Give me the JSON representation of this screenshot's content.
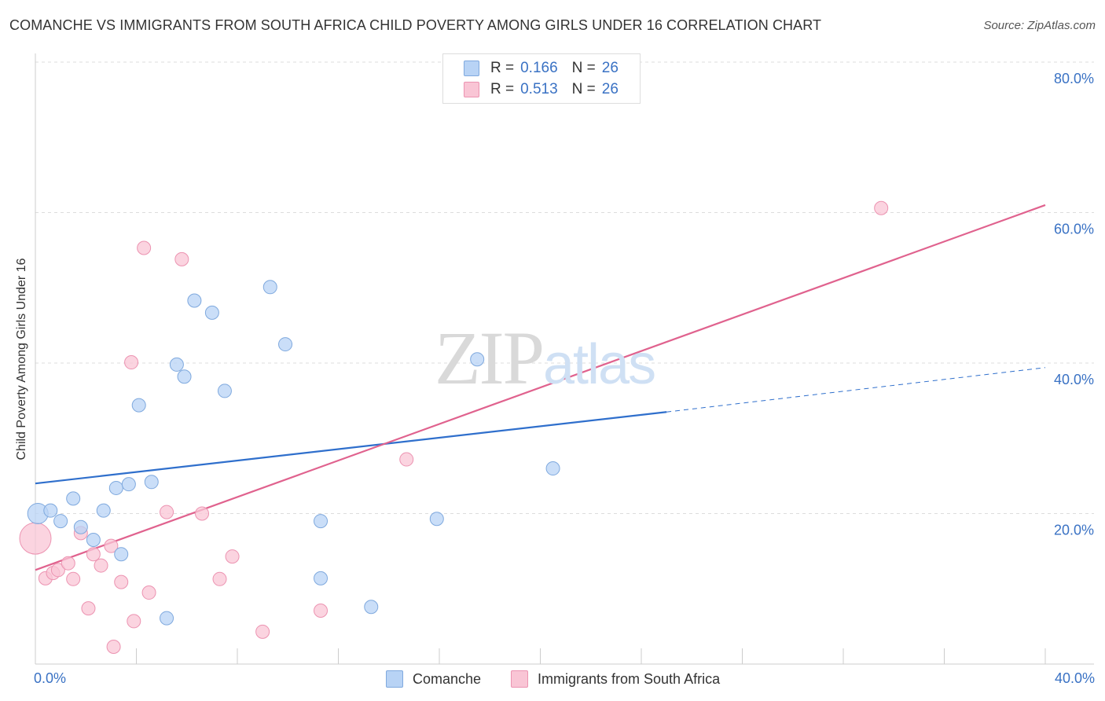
{
  "title": "COMANCHE VS IMMIGRANTS FROM SOUTH AFRICA CHILD POVERTY AMONG GIRLS UNDER 16 CORRELATION CHART",
  "source": "Source: ZipAtlas.com",
  "watermark": {
    "zip": "ZIP",
    "atlas": "atlas"
  },
  "legend": {
    "r_label": "R =",
    "n_label": "N =",
    "rows": [
      {
        "r": "0.166",
        "n": "26"
      },
      {
        "r": "0.513",
        "n": "26"
      }
    ]
  },
  "colors": {
    "comanche_fill": "#b8d3f5",
    "comanche_stroke": "#7fa9de",
    "comanche_line": "#2f6fcc",
    "sa_fill": "#f9c5d5",
    "sa_stroke": "#ec93b1",
    "sa_line": "#e0628e",
    "tick_label": "#3a72c4",
    "grid": "#dddddd"
  },
  "chart_data": {
    "type": "scatter",
    "title": "COMANCHE VS IMMIGRANTS FROM SOUTH AFRICA CHILD POVERTY AMONG GIRLS UNDER 16 CORRELATION CHART",
    "xlabel": "",
    "ylabel": "Child Poverty Among Girls Under 16",
    "xlim": [
      0,
      40
    ],
    "ylim": [
      0,
      80
    ],
    "x_tick_labels": [
      "0.0%",
      "40.0%"
    ],
    "y_ticks": [
      20,
      40,
      60,
      80
    ],
    "y_tick_labels": [
      "20.0%",
      "40.0%",
      "60.0%",
      "80.0%"
    ],
    "grid": true,
    "legend_placement": "top-center",
    "series": [
      {
        "name": "Comanche",
        "points": [
          {
            "x": 0.1,
            "y": 20.0
          },
          {
            "x": 0.6,
            "y": 20.4
          },
          {
            "x": 1.0,
            "y": 19.0
          },
          {
            "x": 1.5,
            "y": 22.0
          },
          {
            "x": 1.8,
            "y": 18.2
          },
          {
            "x": 2.3,
            "y": 16.5
          },
          {
            "x": 2.7,
            "y": 20.4
          },
          {
            "x": 3.2,
            "y": 23.4
          },
          {
            "x": 3.4,
            "y": 14.6
          },
          {
            "x": 3.7,
            "y": 23.9
          },
          {
            "x": 4.1,
            "y": 34.4
          },
          {
            "x": 4.6,
            "y": 24.2
          },
          {
            "x": 5.2,
            "y": 6.1
          },
          {
            "x": 5.6,
            "y": 39.8
          },
          {
            "x": 5.9,
            "y": 38.2
          },
          {
            "x": 6.3,
            "y": 48.3
          },
          {
            "x": 7.0,
            "y": 46.7
          },
          {
            "x": 7.5,
            "y": 36.3
          },
          {
            "x": 9.3,
            "y": 50.1
          },
          {
            "x": 9.9,
            "y": 42.5
          },
          {
            "x": 11.3,
            "y": 11.4
          },
          {
            "x": 11.3,
            "y": 19.0
          },
          {
            "x": 13.3,
            "y": 7.6
          },
          {
            "x": 15.9,
            "y": 19.3
          },
          {
            "x": 17.5,
            "y": 40.5
          },
          {
            "x": 20.5,
            "y": 26.0
          }
        ],
        "trend": {
          "x": [
            0,
            25
          ],
          "y": [
            24.0,
            33.5
          ],
          "extended_to": [
            40,
            39.4
          ]
        }
      },
      {
        "name": "Immigrants from South Africa",
        "points": [
          {
            "x": 0.0,
            "y": 16.7
          },
          {
            "x": 0.4,
            "y": 11.4
          },
          {
            "x": 0.7,
            "y": 12.1
          },
          {
            "x": 0.9,
            "y": 12.5
          },
          {
            "x": 1.3,
            "y": 13.4
          },
          {
            "x": 1.5,
            "y": 11.3
          },
          {
            "x": 1.8,
            "y": 17.4
          },
          {
            "x": 2.1,
            "y": 7.4
          },
          {
            "x": 2.3,
            "y": 14.6
          },
          {
            "x": 2.6,
            "y": 13.1
          },
          {
            "x": 3.0,
            "y": 15.7
          },
          {
            "x": 3.1,
            "y": 2.3
          },
          {
            "x": 3.4,
            "y": 10.9
          },
          {
            "x": 3.8,
            "y": 40.1
          },
          {
            "x": 3.9,
            "y": 5.7
          },
          {
            "x": 4.3,
            "y": 55.3
          },
          {
            "x": 4.5,
            "y": 9.5
          },
          {
            "x": 5.2,
            "y": 20.2
          },
          {
            "x": 5.8,
            "y": 53.8
          },
          {
            "x": 6.6,
            "y": 20.0
          },
          {
            "x": 7.3,
            "y": 11.3
          },
          {
            "x": 7.8,
            "y": 14.3
          },
          {
            "x": 9.0,
            "y": 4.3
          },
          {
            "x": 11.3,
            "y": 7.1
          },
          {
            "x": 14.7,
            "y": 27.2
          },
          {
            "x": 33.5,
            "y": 60.6
          }
        ],
        "trend": {
          "x": [
            0,
            40
          ],
          "y": [
            12.5,
            61.0
          ]
        }
      }
    ]
  }
}
